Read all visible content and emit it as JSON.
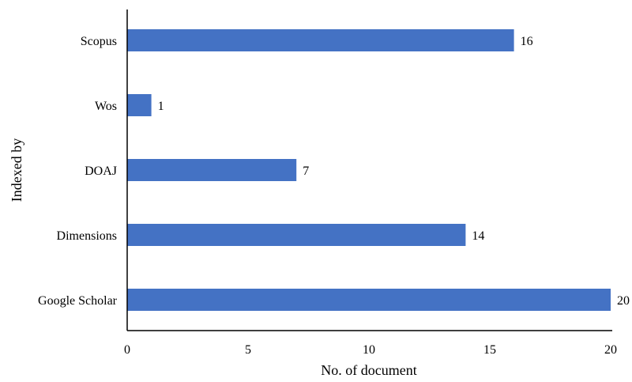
{
  "chart_data": {
    "type": "bar",
    "orientation": "horizontal",
    "categories": [
      "Scopus",
      "Wos",
      "DOAJ",
      "Dimensions",
      "Google Scholar"
    ],
    "values": [
      16,
      1,
      7,
      14,
      20
    ],
    "data_labels": [
      "16",
      "1",
      "7",
      "14",
      "20"
    ],
    "xlabel": "No. of document",
    "ylabel": "Indexed by",
    "xlim": [
      0,
      20
    ],
    "xticks": [
      0,
      5,
      10,
      15,
      20
    ],
    "bar_color": "#4472C4",
    "grid": false,
    "legend": "none"
  }
}
